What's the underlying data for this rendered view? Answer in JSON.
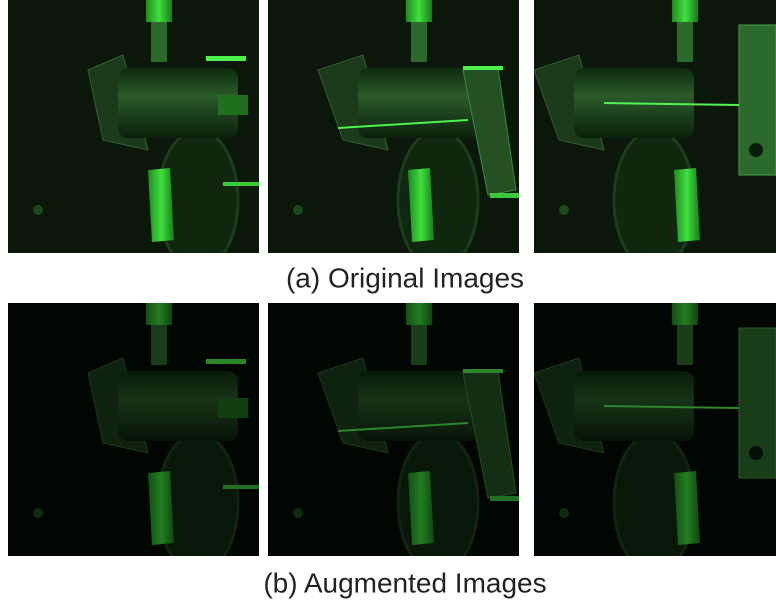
{
  "rows": [
    {
      "caption": "(a) Original Images"
    },
    {
      "caption": "(b) Augmented Images"
    }
  ]
}
